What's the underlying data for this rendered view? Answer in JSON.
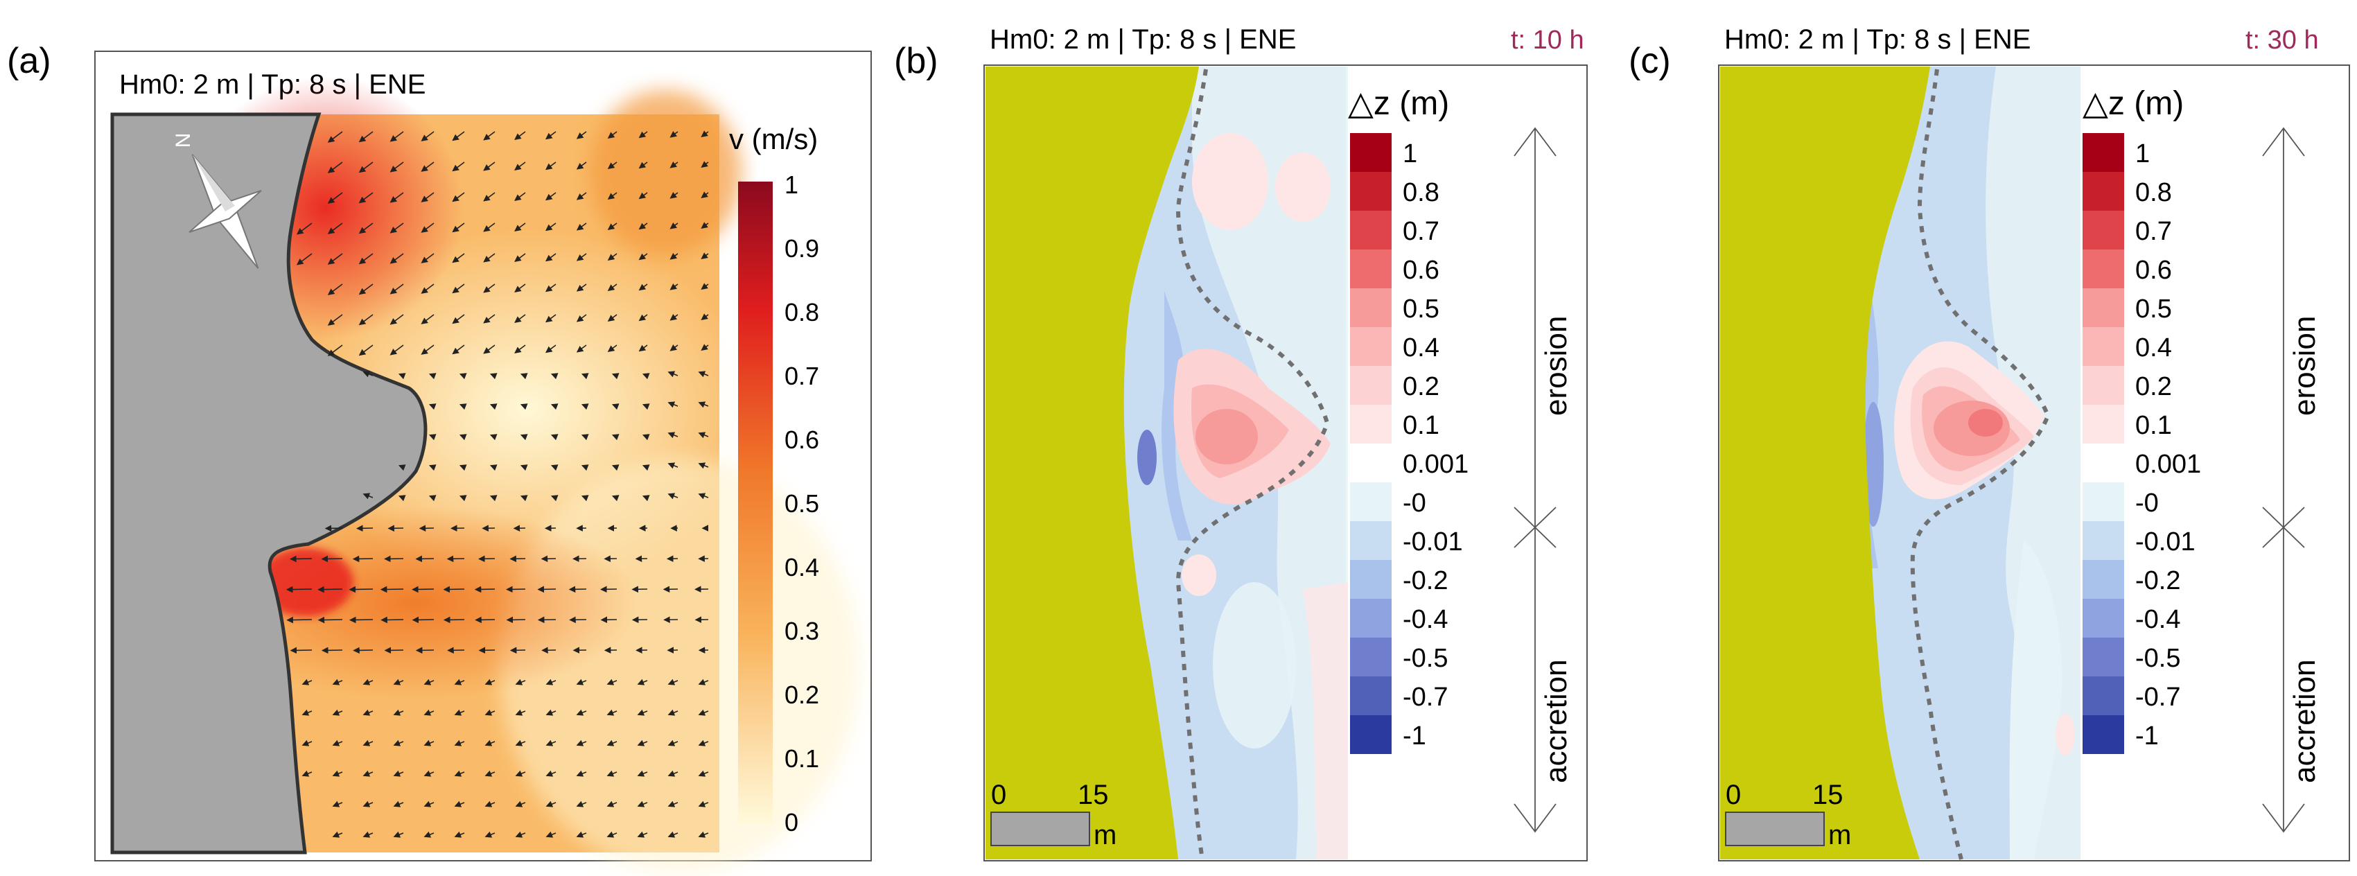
{
  "panels": [
    {
      "letter": "(a)",
      "header": "Hm0: 2 m |  Tp: 8 s | ENE",
      "time": "",
      "compass_label": "N",
      "colorbar_title": "v (m/s)",
      "colorbar_ticks": [
        "1",
        "0.9",
        "0.8",
        "0.7",
        "0.6",
        "0.5",
        "0.4",
        "0.3",
        "0.2",
        "0.1",
        "0"
      ],
      "colors": {
        "land": "#a6a6a6",
        "high": "#8b0a1e",
        "mid": "#f08a2a",
        "low": "#fffadc"
      }
    },
    {
      "letter": "(b)",
      "header": "Hm0: 2 m |  Tp: 8 s | ENE",
      "time": "t: 10 h",
      "colorbar_title": "△z (m)",
      "colorbar_ticks": [
        "1",
        "0.8",
        "0.7",
        "0.6",
        "0.5",
        "0.4",
        "0.2",
        "0.1",
        "0.001",
        "-0",
        "-0.01",
        "-0.2",
        "-0.4",
        "-0.5",
        "-0.7",
        "-1"
      ],
      "arrow_top_label": "erosion",
      "arrow_bottom_label": "accretion",
      "scale_bar": {
        "start": "0",
        "end": "15",
        "unit": "m"
      }
    },
    {
      "letter": "(c)",
      "header": "Hm0: 2 m |  Tp: 8 s | ENE",
      "time": "t: 30 h",
      "colorbar_title": "△z (m)",
      "colorbar_ticks": [
        "1",
        "0.8",
        "0.7",
        "0.6",
        "0.5",
        "0.4",
        "0.2",
        "0.1",
        "0.001",
        "-0",
        "-0.01",
        "-0.2",
        "-0.4",
        "-0.5",
        "-0.7",
        "-1"
      ],
      "arrow_top_label": "erosion",
      "arrow_bottom_label": "accretion",
      "scale_bar": {
        "start": "0",
        "end": "15",
        "unit": "m"
      }
    }
  ],
  "colors": {
    "time_text": "#a0285a",
    "sand": "#c8cc0a",
    "dz_scale": [
      "#a50016",
      "#c8202a",
      "#e0444b",
      "#ee6b6e",
      "#f79a9a",
      "#fbb6b6",
      "#fdd2d2",
      "#fee6e6",
      "#ffffff",
      "#e6f3f7",
      "#c8dcf2",
      "#a9c2ec",
      "#8ea3e0",
      "#6f7fce",
      "#5261b8",
      "#2a3a9e"
    ]
  }
}
